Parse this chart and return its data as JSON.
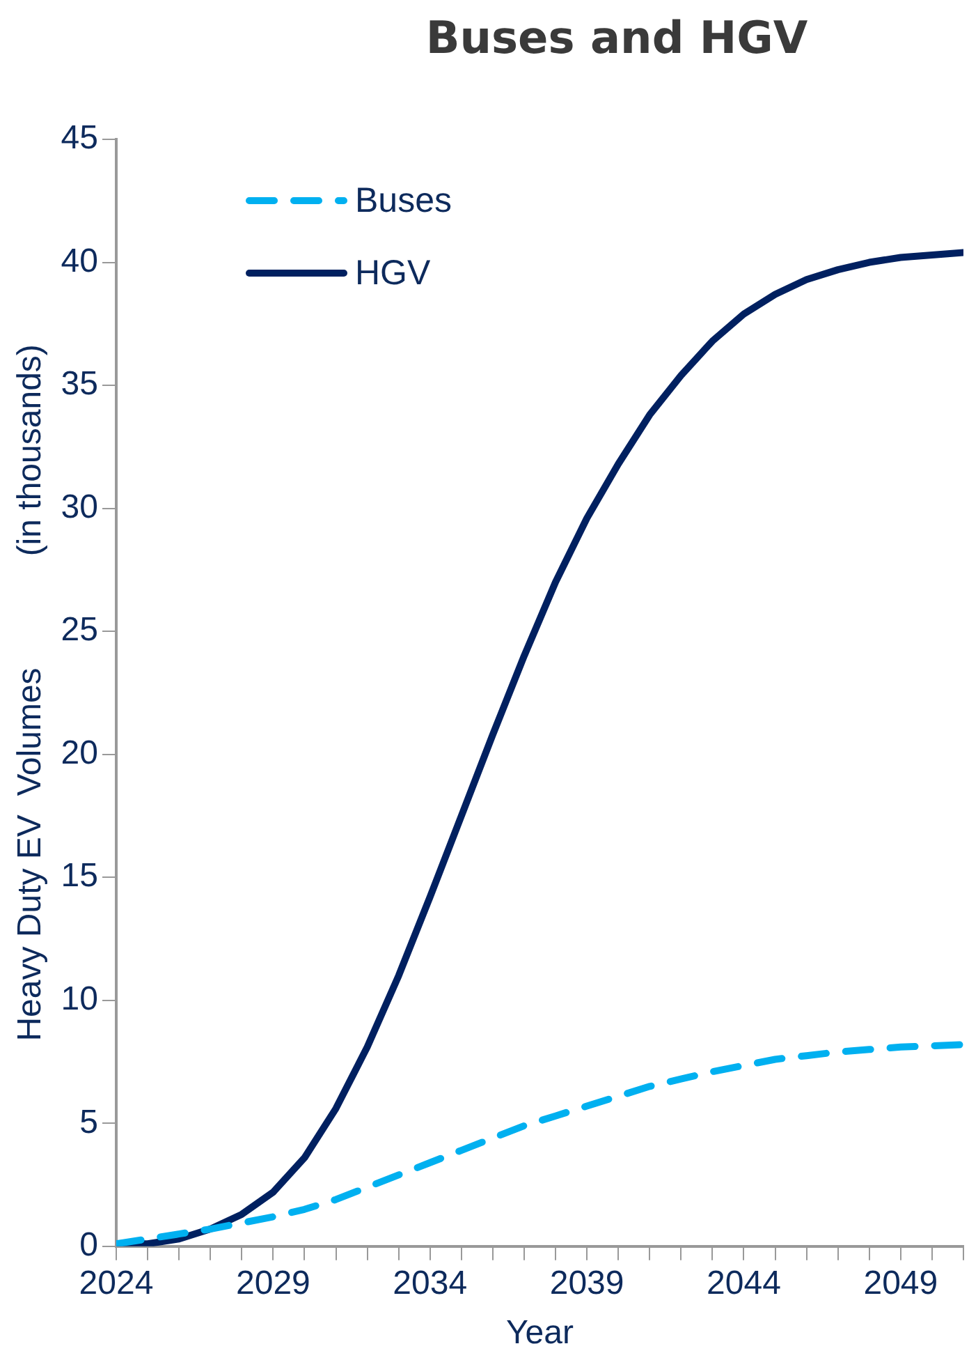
{
  "chart_data": {
    "type": "line",
    "title": "Buses and HGV",
    "xlabel": "Year",
    "ylabel": "Heavy Duty EV  Volumes            (in thousands)",
    "x": [
      2024,
      2025,
      2026,
      2027,
      2028,
      2029,
      2030,
      2031,
      2032,
      2033,
      2034,
      2035,
      2036,
      2037,
      2038,
      2039,
      2040,
      2041,
      2042,
      2043,
      2044,
      2045,
      2046,
      2047,
      2048,
      2049,
      2050,
      2051
    ],
    "series": [
      {
        "name": "Buses",
        "color": "#00b0f0",
        "line_style": "dashed",
        "values": [
          0.1,
          0.3,
          0.5,
          0.7,
          0.95,
          1.2,
          1.5,
          1.9,
          2.4,
          2.9,
          3.4,
          3.9,
          4.4,
          4.9,
          5.3,
          5.7,
          6.1,
          6.5,
          6.8,
          7.1,
          7.35,
          7.6,
          7.75,
          7.9,
          8.0,
          8.1,
          8.15,
          8.2
        ]
      },
      {
        "name": "HGV",
        "color": "#002060",
        "line_style": "solid",
        "values": [
          0.1,
          0.1,
          0.3,
          0.7,
          1.3,
          2.2,
          3.6,
          5.6,
          8.1,
          11.0,
          14.2,
          17.5,
          20.8,
          24.0,
          27.0,
          29.6,
          31.8,
          33.8,
          35.4,
          36.8,
          37.9,
          38.7,
          39.3,
          39.7,
          40.0,
          40.2,
          40.3,
          40.4
        ]
      }
    ],
    "xlim": [
      2024,
      2051
    ],
    "xticks": [
      2024,
      {
        "value": 2025,
        "label": null
      },
      {
        "value": 2026,
        "label": null
      },
      {
        "value": 2027,
        "label": null
      },
      {
        "value": 2028,
        "label": null
      },
      2029,
      {
        "value": 2030,
        "label": null
      },
      {
        "value": 2031,
        "label": null
      },
      {
        "value": 2032,
        "label": null
      },
      {
        "value": 2033,
        "label": null
      },
      2034,
      {
        "value": 2035,
        "label": null
      },
      {
        "value": 2036,
        "label": null
      },
      {
        "value": 2037,
        "label": null
      },
      {
        "value": 2038,
        "label": null
      },
      2039,
      {
        "value": 2040,
        "label": null
      },
      {
        "value": 2041,
        "label": null
      },
      {
        "value": 2042,
        "label": null
      },
      {
        "value": 2043,
        "label": null
      },
      2044,
      {
        "value": 2045,
        "label": null
      },
      {
        "value": 2046,
        "label": null
      },
      {
        "value": 2047,
        "label": null
      },
      {
        "value": 2048,
        "label": null
      },
      2049,
      {
        "value": 2050,
        "label": null
      },
      {
        "value": 2051,
        "label": null
      }
    ],
    "ylim": [
      0,
      45
    ],
    "yticks": [
      0,
      5,
      10,
      15,
      20,
      25,
      30,
      35,
      40,
      45
    ],
    "grid": false,
    "legend": "top left",
    "marker": "none"
  }
}
